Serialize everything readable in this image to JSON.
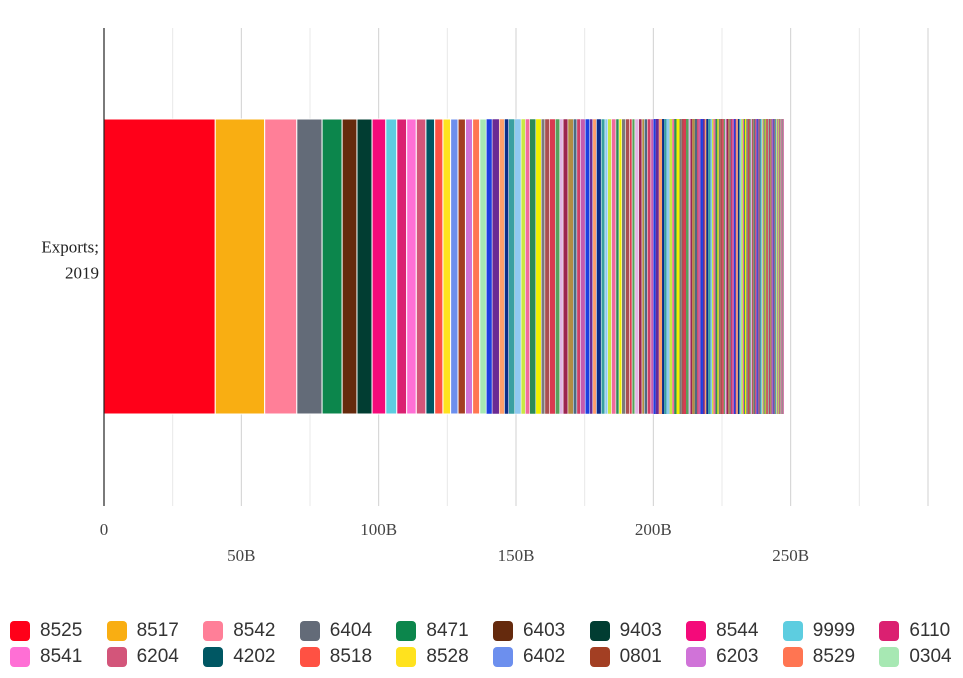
{
  "chart_data": {
    "type": "bar",
    "orientation": "horizontal",
    "stacked": true,
    "categories": [
      "Exports; 2019"
    ],
    "category_lines": [
      "Exports;",
      "2019"
    ],
    "xlim": [
      0,
      300000000000
    ],
    "xticks": [
      {
        "value": 0,
        "label": "0",
        "row": 1
      },
      {
        "value": 50000000000,
        "label": "50B",
        "row": 2
      },
      {
        "value": 100000000000,
        "label": "100B",
        "row": 1
      },
      {
        "value": 150000000000,
        "label": "150B",
        "row": 2
      },
      {
        "value": 200000000000,
        "label": "200B",
        "row": 1
      },
      {
        "value": 250000000000,
        "label": "250B",
        "row": 2
      }
    ],
    "grid": true,
    "legend_position": "bottom",
    "series": [
      {
        "name": "8525",
        "value": 40500000000,
        "color": "#FF0019"
      },
      {
        "name": "8517",
        "value": 18000000000,
        "color": "#F9AE12"
      },
      {
        "name": "8542",
        "value": 11700000000,
        "color": "#FF7F98"
      },
      {
        "name": "6404",
        "value": 9200000000,
        "color": "#636B78"
      },
      {
        "name": "8471",
        "value": 7300000000,
        "color": "#0C864C"
      },
      {
        "name": "6403",
        "value": 5400000000,
        "color": "#652A0D"
      },
      {
        "name": "9403",
        "value": 5500000000,
        "color": "#013D32"
      },
      {
        "name": "8544",
        "value": 5000000000,
        "color": "#F40A7A"
      },
      {
        "name": "9999",
        "value": 4000000000,
        "color": "#5DCDE0"
      },
      {
        "name": "6110",
        "value": 3600000000,
        "color": "#DB2071"
      },
      {
        "name": "8541",
        "value": 3500000000,
        "color": "#FF6FD5"
      },
      {
        "name": "6204",
        "value": 3500000000,
        "color": "#D3557A"
      },
      {
        "name": "4202",
        "value": 3200000000,
        "color": "#005763"
      },
      {
        "name": "8518",
        "value": 3000000000,
        "color": "#FF5143"
      },
      {
        "name": "8528",
        "value": 2800000000,
        "color": "#FFE21E"
      },
      {
        "name": "6402",
        "value": 2700000000,
        "color": "#6C8FEE"
      },
      {
        "name": "0801",
        "value": 2700000000,
        "color": "#A33F23"
      },
      {
        "name": "6203",
        "value": 2600000000,
        "color": "#D073D8"
      },
      {
        "name": "8529",
        "value": 2600000000,
        "color": "#FF7552"
      },
      {
        "name": "0304",
        "value": 2400000000,
        "color": "#A7E8B3"
      }
    ],
    "remainder": {
      "value": 108300000000,
      "segments": 140,
      "palette": [
        "#1E3FE0",
        "#0B2C88",
        "#C8E844",
        "#F0F000",
        "#DA3A50",
        "#9B2450",
        "#CC3D66",
        "#6A2A94",
        "#39A0A0",
        "#F06A9C",
        "#7B7B7B",
        "#58A05C",
        "#B28C42",
        "#C45CB0",
        "#FF9E6B",
        "#8FC9F0",
        "#2E8B57",
        "#AA5050",
        "#E2B5E6",
        "#4C6A82"
      ]
    }
  }
}
